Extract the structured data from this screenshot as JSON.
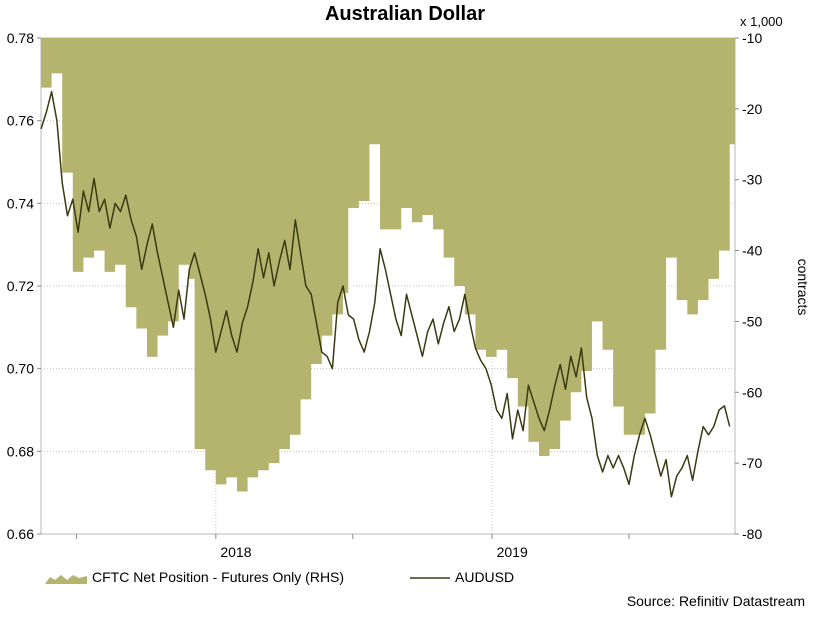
{
  "chart_data": {
    "type": "area",
    "title": "Australian Dollar",
    "source": "Source: Refinitiv Datastream",
    "left_axis": {
      "ylim": [
        0.66,
        0.78
      ],
      "ticks": [
        "0.66",
        "0.68",
        "0.70",
        "0.72",
        "0.74",
        "0.76",
        "0.78"
      ]
    },
    "right_axis": {
      "label": "contracts",
      "unit": "x 1,000",
      "ylim": [
        -80,
        -10
      ],
      "ticks": [
        "-80",
        "-70",
        "-60",
        "-50",
        "-40",
        "-30",
        "-20",
        "-10"
      ]
    },
    "x_axis": {
      "tick_labels": [
        "2018",
        "2019"
      ]
    },
    "grid": true,
    "legend_position": "bottom",
    "series": [
      {
        "name": "CFTC Net Position - Futures Only (RHS)",
        "kind": "area",
        "axis": "right",
        "color": "#b4b46e",
        "points": [
          [
            "2017-05-15",
            -17
          ],
          [
            "2017-05-29",
            -15
          ],
          [
            "2017-06-12",
            -29
          ],
          [
            "2017-06-26",
            -43
          ],
          [
            "2017-07-10",
            -41
          ],
          [
            "2017-07-24",
            -40
          ],
          [
            "2017-08-07",
            -43
          ],
          [
            "2017-08-21",
            -42
          ],
          [
            "2017-09-04",
            -48
          ],
          [
            "2017-09-18",
            -51
          ],
          [
            "2017-10-02",
            -55
          ],
          [
            "2017-10-16",
            -52
          ],
          [
            "2017-10-30",
            -50
          ],
          [
            "2017-11-13",
            -42
          ],
          [
            "2017-11-27",
            -44
          ],
          [
            "2017-12-04",
            -68
          ],
          [
            "2017-12-18",
            -71
          ],
          [
            "2018-01-01",
            -73
          ],
          [
            "2018-01-15",
            -72
          ],
          [
            "2018-01-29",
            -74
          ],
          [
            "2018-02-12",
            -72
          ],
          [
            "2018-02-26",
            -71
          ],
          [
            "2018-03-12",
            -70
          ],
          [
            "2018-03-26",
            -68
          ],
          [
            "2018-04-09",
            -66
          ],
          [
            "2018-04-23",
            -61
          ],
          [
            "2018-05-07",
            -56
          ],
          [
            "2018-05-21",
            -52
          ],
          [
            "2018-06-04",
            -49
          ],
          [
            "2018-06-18",
            -46
          ],
          [
            "2018-06-25",
            -34
          ],
          [
            "2018-07-09",
            -33
          ],
          [
            "2018-07-23",
            -25
          ],
          [
            "2018-08-06",
            -37
          ],
          [
            "2018-08-20",
            -37
          ],
          [
            "2018-09-03",
            -34
          ],
          [
            "2018-09-17",
            -36
          ],
          [
            "2018-10-01",
            -35
          ],
          [
            "2018-10-15",
            -37
          ],
          [
            "2018-10-29",
            -41
          ],
          [
            "2018-11-12",
            -45
          ],
          [
            "2018-11-26",
            -49
          ],
          [
            "2018-12-10",
            -54
          ],
          [
            "2018-12-24",
            -55
          ],
          [
            "2019-01-07",
            -54
          ],
          [
            "2019-01-21",
            -58
          ],
          [
            "2019-02-04",
            -62
          ],
          [
            "2019-02-18",
            -67
          ],
          [
            "2019-03-04",
            -69
          ],
          [
            "2019-03-18",
            -68
          ],
          [
            "2019-04-01",
            -64
          ],
          [
            "2019-04-15",
            -60
          ],
          [
            "2019-04-29",
            -57
          ],
          [
            "2019-05-13",
            -50
          ],
          [
            "2019-05-27",
            -54
          ],
          [
            "2019-06-10",
            -62
          ],
          [
            "2019-06-24",
            -66
          ],
          [
            "2019-07-08",
            -66
          ],
          [
            "2019-07-22",
            -63
          ],
          [
            "2019-08-05",
            -54
          ],
          [
            "2019-08-19",
            -41
          ],
          [
            "2019-09-02",
            -47
          ],
          [
            "2019-09-16",
            -49
          ],
          [
            "2019-09-30",
            -47
          ],
          [
            "2019-10-14",
            -44
          ],
          [
            "2019-10-28",
            -40
          ],
          [
            "2019-11-11",
            -25
          ]
        ]
      },
      {
        "name": "AUDUSD",
        "kind": "line",
        "axis": "left",
        "color": "#3a3a12",
        "points": [
          [
            "2017-05-15",
            0.758
          ],
          [
            "2017-05-22",
            0.762
          ],
          [
            "2017-05-29",
            0.767
          ],
          [
            "2017-06-05",
            0.76
          ],
          [
            "2017-06-12",
            0.745
          ],
          [
            "2017-06-19",
            0.737
          ],
          [
            "2017-06-26",
            0.741
          ],
          [
            "2017-07-03",
            0.733
          ],
          [
            "2017-07-10",
            0.743
          ],
          [
            "2017-07-17",
            0.738
          ],
          [
            "2017-07-24",
            0.746
          ],
          [
            "2017-07-31",
            0.738
          ],
          [
            "2017-08-07",
            0.741
          ],
          [
            "2017-08-14",
            0.734
          ],
          [
            "2017-08-21",
            0.74
          ],
          [
            "2017-08-28",
            0.738
          ],
          [
            "2017-09-04",
            0.742
          ],
          [
            "2017-09-11",
            0.736
          ],
          [
            "2017-09-18",
            0.732
          ],
          [
            "2017-09-25",
            0.724
          ],
          [
            "2017-10-02",
            0.73
          ],
          [
            "2017-10-09",
            0.735
          ],
          [
            "2017-10-16",
            0.728
          ],
          [
            "2017-10-23",
            0.722
          ],
          [
            "2017-10-30",
            0.716
          ],
          [
            "2017-11-06",
            0.71
          ],
          [
            "2017-11-13",
            0.719
          ],
          [
            "2017-11-20",
            0.712
          ],
          [
            "2017-11-27",
            0.724
          ],
          [
            "2017-12-04",
            0.728
          ],
          [
            "2017-12-11",
            0.723
          ],
          [
            "2017-12-18",
            0.718
          ],
          [
            "2017-12-25",
            0.712
          ],
          [
            "2018-01-01",
            0.704
          ],
          [
            "2018-01-08",
            0.709
          ],
          [
            "2018-01-15",
            0.714
          ],
          [
            "2018-01-22",
            0.708
          ],
          [
            "2018-01-29",
            0.704
          ],
          [
            "2018-02-05",
            0.711
          ],
          [
            "2018-02-12",
            0.715
          ],
          [
            "2018-02-19",
            0.721
          ],
          [
            "2018-02-26",
            0.729
          ],
          [
            "2018-03-05",
            0.722
          ],
          [
            "2018-03-12",
            0.728
          ],
          [
            "2018-03-19",
            0.72
          ],
          [
            "2018-03-26",
            0.726
          ],
          [
            "2018-04-02",
            0.731
          ],
          [
            "2018-04-09",
            0.724
          ],
          [
            "2018-04-16",
            0.736
          ],
          [
            "2018-04-23",
            0.728
          ],
          [
            "2018-04-30",
            0.72
          ],
          [
            "2018-05-07",
            0.718
          ],
          [
            "2018-05-14",
            0.711
          ],
          [
            "2018-05-21",
            0.704
          ],
          [
            "2018-05-28",
            0.703
          ],
          [
            "2018-06-04",
            0.7
          ],
          [
            "2018-06-11",
            0.716
          ],
          [
            "2018-06-18",
            0.72
          ],
          [
            "2018-06-25",
            0.713
          ],
          [
            "2018-07-02",
            0.712
          ],
          [
            "2018-07-09",
            0.707
          ],
          [
            "2018-07-16",
            0.704
          ],
          [
            "2018-07-23",
            0.709
          ],
          [
            "2018-07-30",
            0.716
          ],
          [
            "2018-08-06",
            0.729
          ],
          [
            "2018-08-13",
            0.724
          ],
          [
            "2018-08-20",
            0.718
          ],
          [
            "2018-08-27",
            0.712
          ],
          [
            "2018-09-03",
            0.708
          ],
          [
            "2018-09-10",
            0.718
          ],
          [
            "2018-09-17",
            0.713
          ],
          [
            "2018-09-24",
            0.708
          ],
          [
            "2018-10-01",
            0.703
          ],
          [
            "2018-10-08",
            0.709
          ],
          [
            "2018-10-15",
            0.712
          ],
          [
            "2018-10-22",
            0.706
          ],
          [
            "2018-10-29",
            0.711
          ],
          [
            "2018-11-05",
            0.715
          ],
          [
            "2018-11-12",
            0.709
          ],
          [
            "2018-11-19",
            0.712
          ],
          [
            "2018-11-26",
            0.718
          ],
          [
            "2018-12-03",
            0.711
          ],
          [
            "2018-12-10",
            0.705
          ],
          [
            "2018-12-17",
            0.702
          ],
          [
            "2018-12-24",
            0.7
          ],
          [
            "2018-12-31",
            0.696
          ],
          [
            "2019-01-07",
            0.69
          ],
          [
            "2019-01-14",
            0.688
          ],
          [
            "2019-01-21",
            0.694
          ],
          [
            "2019-01-28",
            0.683
          ],
          [
            "2019-02-04",
            0.69
          ],
          [
            "2019-02-11",
            0.685
          ],
          [
            "2019-02-18",
            0.696
          ],
          [
            "2019-02-25",
            0.692
          ],
          [
            "2019-03-04",
            0.688
          ],
          [
            "2019-03-11",
            0.685
          ],
          [
            "2019-03-18",
            0.69
          ],
          [
            "2019-03-25",
            0.696
          ],
          [
            "2019-04-01",
            0.701
          ],
          [
            "2019-04-08",
            0.695
          ],
          [
            "2019-04-15",
            0.703
          ],
          [
            "2019-04-22",
            0.698
          ],
          [
            "2019-04-29",
            0.705
          ],
          [
            "2019-05-06",
            0.693
          ],
          [
            "2019-05-13",
            0.688
          ],
          [
            "2019-05-20",
            0.679
          ],
          [
            "2019-05-27",
            0.675
          ],
          [
            "2019-06-03",
            0.679
          ],
          [
            "2019-06-10",
            0.676
          ],
          [
            "2019-06-17",
            0.679
          ],
          [
            "2019-06-24",
            0.676
          ],
          [
            "2019-07-01",
            0.672
          ],
          [
            "2019-07-08",
            0.679
          ],
          [
            "2019-07-15",
            0.684
          ],
          [
            "2019-07-22",
            0.688
          ],
          [
            "2019-07-29",
            0.684
          ],
          [
            "2019-08-05",
            0.679
          ],
          [
            "2019-08-12",
            0.674
          ],
          [
            "2019-08-19",
            0.678
          ],
          [
            "2019-08-26",
            0.669
          ],
          [
            "2019-09-02",
            0.674
          ],
          [
            "2019-09-09",
            0.676
          ],
          [
            "2019-09-16",
            0.679
          ],
          [
            "2019-09-23",
            0.673
          ],
          [
            "2019-09-30",
            0.68
          ],
          [
            "2019-10-07",
            0.686
          ],
          [
            "2019-10-14",
            0.684
          ],
          [
            "2019-10-21",
            0.686
          ],
          [
            "2019-10-28",
            0.69
          ],
          [
            "2019-11-04",
            0.691
          ],
          [
            "2019-11-11",
            0.686
          ]
        ]
      }
    ]
  }
}
